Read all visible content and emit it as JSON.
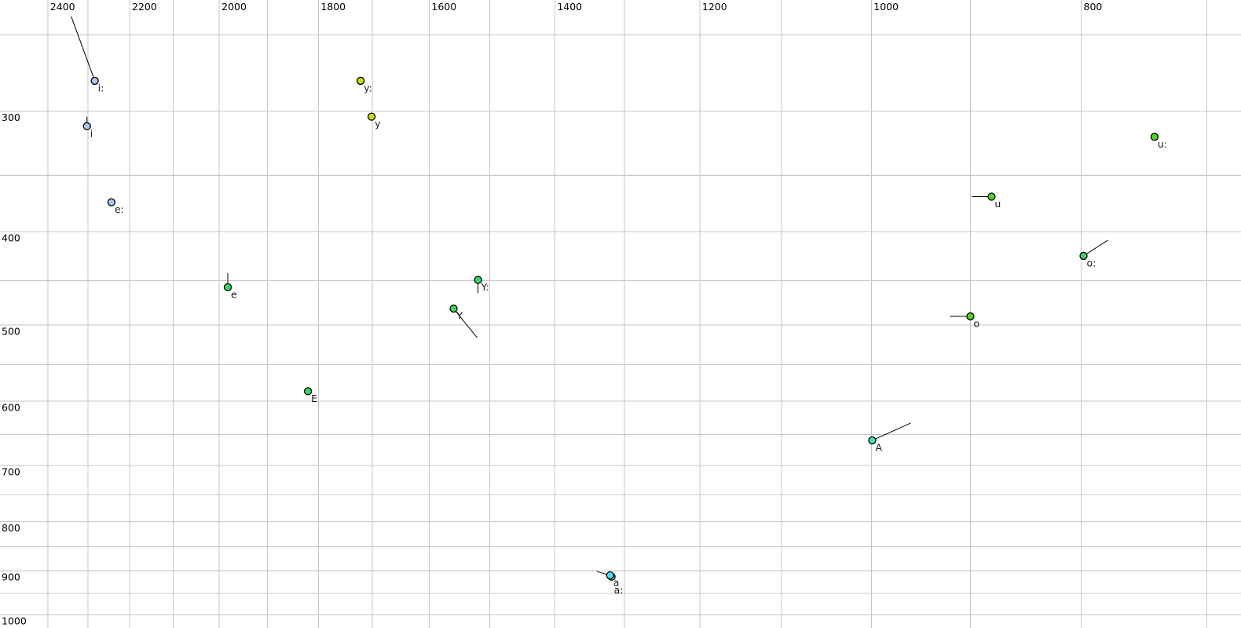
{
  "page": {
    "background": "#ffffff",
    "description": "Vowel formant scatter plot: F2 (Hz) on horizontal reversed log axis, F1 (Hz) on vertical log axis, light gray grid on white"
  },
  "chart_data": {
    "type": "scatter",
    "title": "",
    "xlabel": "",
    "ylabel": "",
    "x_unit": "Hz",
    "y_unit": "Hz",
    "grid": true,
    "grid_color": "#c6c6c6",
    "background_color": "#ffffff",
    "tick_label_color": "#000000",
    "tick_font_size": 12.5,
    "point_radius": 4.5,
    "point_border_color": "#000000",
    "tail_color": "#000000",
    "label_color": "#1a1a1a",
    "label_font_size": 12.5,
    "label_offset": [
      4,
      4
    ],
    "axes": {
      "x": {
        "name": "F2",
        "scale": "log",
        "reversed": true,
        "left_value": 2525,
        "right_value": 675,
        "gridlines": [
          2400,
          2300,
          2200,
          2100,
          2000,
          1900,
          1800,
          1700,
          1600,
          1500,
          1400,
          1300,
          1200,
          1100,
          1000,
          900,
          800,
          700
        ],
        "tick_labels": [
          {
            "value": 2400,
            "text": "2400"
          },
          {
            "value": 2200,
            "text": "2200"
          },
          {
            "value": 2000,
            "text": "2000"
          },
          {
            "value": 1800,
            "text": "1800"
          },
          {
            "value": 1600,
            "text": "1600"
          },
          {
            "value": 1400,
            "text": "1400"
          },
          {
            "value": 1200,
            "text": "1200"
          },
          {
            "value": 1000,
            "text": "1000"
          },
          {
            "value": 800,
            "text": "800"
          }
        ]
      },
      "y": {
        "name": "F1",
        "scale": "log",
        "top_value": 230,
        "bottom_value": 1032,
        "gridlines": [
          250,
          300,
          350,
          400,
          450,
          500,
          550,
          600,
          650,
          700,
          750,
          800,
          850,
          900,
          950,
          1000
        ],
        "tick_labels": [
          {
            "value": 300,
            "text": "300"
          },
          {
            "value": 400,
            "text": "400"
          },
          {
            "value": 500,
            "text": "500"
          },
          {
            "value": 600,
            "text": "600"
          },
          {
            "value": 700,
            "text": "700"
          },
          {
            "value": 800,
            "text": "800"
          },
          {
            "value": 900,
            "text": "900"
          },
          {
            "value": 1000,
            "text": "1000"
          }
        ]
      }
    },
    "points": [
      {
        "label": "i:",
        "f2_hz": 2283,
        "f1_hz": 279,
        "color": "#a8c8f0",
        "tail": [
          -30,
          -82
        ]
      },
      {
        "label": "i",
        "f2_hz": 2302,
        "f1_hz": 311,
        "color": "#a8c8f0",
        "tail": [
          0,
          -12
        ]
      },
      {
        "label": "e:",
        "f2_hz": 2243,
        "f1_hz": 373,
        "color": "#a8c8f0",
        "tail": null
      },
      {
        "label": "y:",
        "f2_hz": 1721,
        "f1_hz": 279,
        "color": "#ccdd11",
        "tail": null
      },
      {
        "label": "y",
        "f2_hz": 1701,
        "f1_hz": 304,
        "color": "#ccdd11",
        "tail": null
      },
      {
        "label": "e",
        "f2_hz": 1982,
        "f1_hz": 457,
        "color": "#3bd65e",
        "tail": [
          0,
          -18
        ]
      },
      {
        "label": "Y:",
        "f2_hz": 1519,
        "f1_hz": 449,
        "color": "#3bd65e",
        "tail": [
          0,
          17
        ]
      },
      {
        "label": "Y",
        "f2_hz": 1559,
        "f1_hz": 481,
        "color": "#3bd65e",
        "tail": [
          30,
          37
        ]
      },
      {
        "label": "E",
        "f2_hz": 1820,
        "f1_hz": 586,
        "color": "#3bd65e",
        "tail": null
      },
      {
        "label": "u:",
        "f2_hz": 740,
        "f1_hz": 319,
        "color": "#52d61d",
        "tail": null
      },
      {
        "label": "u",
        "f2_hz": 880,
        "f1_hz": 368,
        "color": "#52d61d",
        "tail": [
          -25,
          0
        ]
      },
      {
        "label": "o:",
        "f2_hz": 798,
        "f1_hz": 424,
        "color": "#3bd65e",
        "tail": [
          31,
          -20
        ]
      },
      {
        "label": "o",
        "f2_hz": 900,
        "f1_hz": 490,
        "color": "#52d61d",
        "tail": [
          -26,
          0
        ]
      },
      {
        "label": "A",
        "f2_hz": 999,
        "f1_hz": 659,
        "color": "#47dca8",
        "tail": [
          49,
          -22
        ]
      },
      {
        "label": "a:",
        "f2_hz": 1318,
        "f1_hz": 913,
        "color": "#55dcee",
        "tail": null,
        "label_offset": [
          3,
          12
        ]
      },
      {
        "label": "a",
        "f2_hz": 1320,
        "f1_hz": 910,
        "color": "#55dcee",
        "tail": [
          -17,
          -5
        ]
      }
    ]
  }
}
